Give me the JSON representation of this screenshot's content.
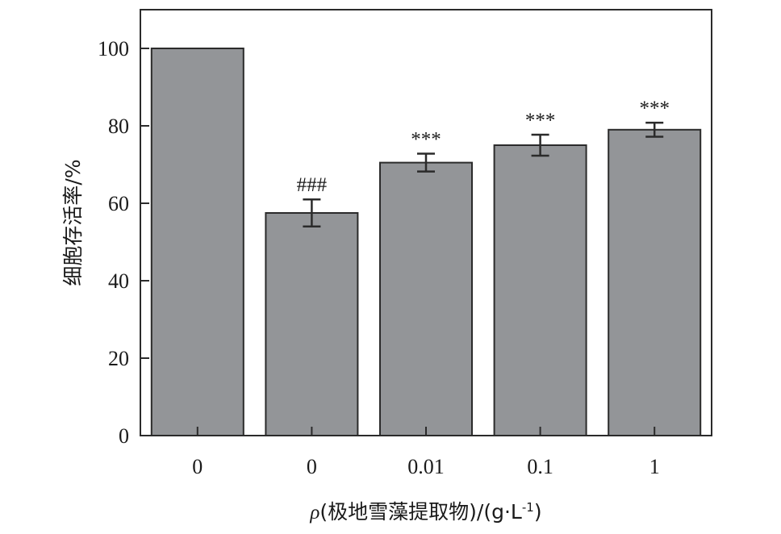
{
  "chart_data": {
    "type": "bar",
    "categories": [
      "0",
      "0",
      "0.01",
      "0.1",
      "1"
    ],
    "values": [
      100,
      57.5,
      70.5,
      75,
      79
    ],
    "errors": [
      0,
      3.5,
      2.3,
      2.7,
      1.8
    ],
    "annotations": [
      "",
      "###",
      "***",
      "***",
      "***"
    ],
    "ylabel": "细胞存活率/%",
    "xlabel": {
      "symbol": "ρ",
      "text": "(极地雪藻提取物)/(g·L",
      "superscript": "-1",
      "suffix": ")"
    },
    "ylim": [
      0,
      110
    ],
    "yticks": [
      0,
      20,
      40,
      60,
      80,
      100
    ],
    "grid": false,
    "colors": {
      "bar_fill": "#939598",
      "bar_stroke": "#2b2b2b",
      "axis": "#2b2b2b"
    }
  }
}
